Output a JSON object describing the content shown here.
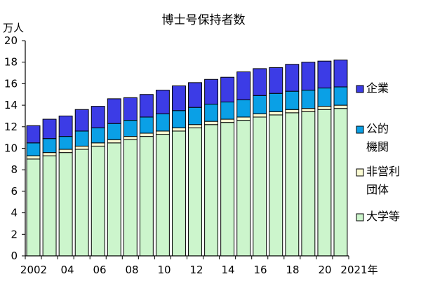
{
  "chart_data": {
    "type": "bar",
    "stacked": true,
    "title": "博士号保持者数",
    "ylabel": "万人",
    "xlabel": "",
    "ylim": [
      0,
      20
    ],
    "yticks": [
      0,
      2,
      4,
      6,
      8,
      10,
      12,
      14,
      16,
      18,
      20
    ],
    "grid": false,
    "legend_position": "right",
    "categories": [
      "2002",
      "2003",
      "2004",
      "2005",
      "2006",
      "2007",
      "2008",
      "2009",
      "2010",
      "2011",
      "2012",
      "2013",
      "2014",
      "2015",
      "2016",
      "2017",
      "2018",
      "2019",
      "2020",
      "2021"
    ],
    "tick_labels": [
      "2002",
      "04",
      "06",
      "08",
      "10",
      "12",
      "14",
      "16",
      "18",
      "20",
      "2021年"
    ],
    "series": [
      {
        "name": "大学等",
        "color": "#ccf5cc",
        "values": [
          9.0,
          9.3,
          9.6,
          9.9,
          10.2,
          10.5,
          10.8,
          11.1,
          11.3,
          11.6,
          11.9,
          12.2,
          12.4,
          12.6,
          12.9,
          13.1,
          13.3,
          13.4,
          13.6,
          13.7
        ]
      },
      {
        "name": "非営利\n団体",
        "color": "#fafad2",
        "values": [
          0.3,
          0.3,
          0.3,
          0.3,
          0.3,
          0.3,
          0.3,
          0.3,
          0.3,
          0.3,
          0.3,
          0.3,
          0.3,
          0.3,
          0.3,
          0.3,
          0.3,
          0.3,
          0.3,
          0.3
        ]
      },
      {
        "name": "公的\n機関",
        "color": "#0aa0e6",
        "values": [
          1.2,
          1.3,
          1.2,
          1.4,
          1.4,
          1.5,
          1.5,
          1.5,
          1.6,
          1.6,
          1.6,
          1.6,
          1.6,
          1.6,
          1.7,
          1.7,
          1.7,
          1.7,
          1.7,
          1.7
        ]
      },
      {
        "name": "企業",
        "color": "#3c3ce6",
        "values": [
          1.6,
          1.8,
          1.9,
          2.0,
          2.0,
          2.3,
          2.1,
          2.1,
          2.2,
          2.3,
          2.3,
          2.3,
          2.3,
          2.6,
          2.5,
          2.4,
          2.5,
          2.6,
          2.5,
          2.5
        ]
      }
    ],
    "legend_order": [
      "企業",
      "公的\n機関",
      "非営利\n団体",
      "大学等"
    ]
  }
}
